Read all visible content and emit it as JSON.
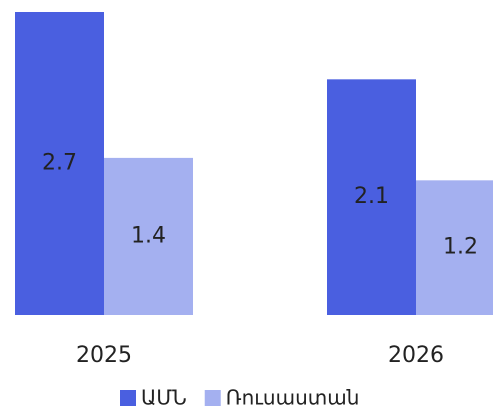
{
  "chart_data": {
    "type": "bar",
    "categories": [
      "2025",
      "2026"
    ],
    "series": [
      {
        "name": "ԱՄՆ",
        "color": "#4a5fe0",
        "values": [
          2.7,
          2.1
        ]
      },
      {
        "name": "Ռուսաստան",
        "color": "#a4b0f0",
        "values": [
          1.4,
          1.2
        ]
      }
    ]
  }
}
